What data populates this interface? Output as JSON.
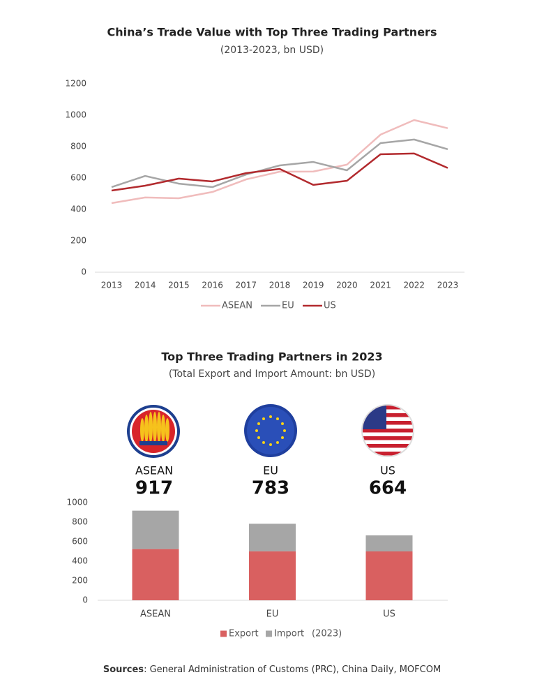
{
  "chart_data": [
    {
      "type": "line",
      "title": "China’s Trade Value with Top Three Trading Partners",
      "subtitle": "(2013-2023, bn USD)",
      "categories": [
        "2013",
        "2014",
        "2015",
        "2016",
        "2017",
        "2018",
        "2019",
        "2020",
        "2021",
        "2022",
        "2023"
      ],
      "series": [
        {
          "name": "ASEAN",
          "color": "#f0bcbc",
          "values": [
            440,
            476,
            471,
            511,
            591,
            640,
            641,
            685,
            876,
            969,
            917
          ]
        },
        {
          "name": "EU",
          "color": "#a6a6a6",
          "values": [
            542,
            613,
            564,
            542,
            622,
            680,
            702,
            649,
            822,
            845,
            783
          ]
        },
        {
          "name": "US",
          "color": "#b22a2e",
          "values": [
            520,
            551,
            596,
            578,
            631,
            658,
            556,
            582,
            751,
            756,
            664
          ]
        }
      ],
      "ylim": [
        0,
        1200
      ],
      "yticks": [
        0,
        200,
        400,
        600,
        800,
        1000,
        1200
      ],
      "grid": false,
      "legend": "bottom"
    },
    {
      "type": "bar",
      "stacked": true,
      "title": "Top Three Trading Partners in 2023",
      "subtitle": "(Total Export and Import Amount: bn USD)",
      "categories": [
        "ASEAN",
        "EU",
        "US"
      ],
      "totals": [
        917,
        783,
        664
      ],
      "series": [
        {
          "name": "Export",
          "color": "#d96060",
          "values": [
            524,
            501,
            500
          ]
        },
        {
          "name": "Import",
          "color": "#a6a6a6",
          "values": [
            393,
            282,
            164
          ]
        }
      ],
      "legend_note": "(2023)",
      "ylim": [
        0,
        1000
      ],
      "yticks": [
        0,
        200,
        400,
        600,
        800,
        1000
      ],
      "grid": false,
      "legend": "bottom"
    }
  ],
  "footer": {
    "label": "Sources",
    "text": ":  General Administration of Customs (PRC), China Daily, MOFCOM"
  }
}
